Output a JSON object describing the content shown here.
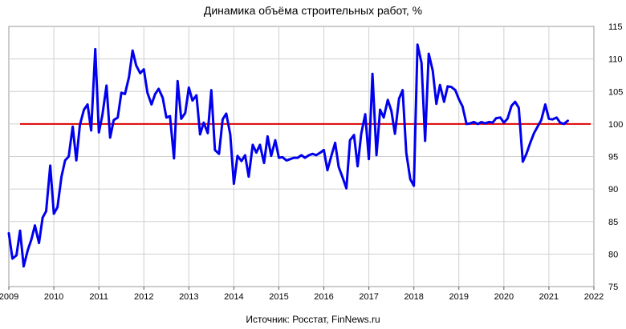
{
  "chart_data": {
    "type": "line",
    "title": "Динамика объёма строительных работ, %",
    "source": "Источник: Росстат, FinNews.ru",
    "xlabel": "",
    "ylabel": "",
    "xlim": [
      2009,
      2022
    ],
    "ylim": [
      75,
      115
    ],
    "x_ticks": [
      "2009",
      "2010",
      "2011",
      "2012",
      "2013",
      "2014",
      "2015",
      "2016",
      "2017",
      "2018",
      "2019",
      "2020",
      "2021",
      "2022"
    ],
    "y_ticks": [
      "75",
      "80",
      "85",
      "90",
      "95",
      "100",
      "105",
      "110",
      "115"
    ],
    "grid": true,
    "reference_line": {
      "value": 100,
      "color": "#e00000"
    },
    "series": [
      {
        "color": "#0000ee",
        "points": [
          [
            2009.0,
            83.2
          ],
          [
            2009.08,
            79.3
          ],
          [
            2009.17,
            79.8
          ],
          [
            2009.25,
            83.6
          ],
          [
            2009.33,
            78.1
          ],
          [
            2009.42,
            80.6
          ],
          [
            2009.5,
            82.2
          ],
          [
            2009.58,
            84.4
          ],
          [
            2009.67,
            81.7
          ],
          [
            2009.75,
            85.6
          ],
          [
            2009.83,
            86.6
          ],
          [
            2009.92,
            93.6
          ],
          [
            2010.0,
            86.2
          ],
          [
            2010.08,
            87.2
          ],
          [
            2010.17,
            91.9
          ],
          [
            2010.25,
            94.4
          ],
          [
            2010.33,
            95.0
          ],
          [
            2010.42,
            99.6
          ],
          [
            2010.5,
            94.4
          ],
          [
            2010.58,
            99.9
          ],
          [
            2010.67,
            102.2
          ],
          [
            2010.75,
            103.0
          ],
          [
            2010.83,
            99.0
          ],
          [
            2010.92,
            111.5
          ],
          [
            2011.0,
            98.7
          ],
          [
            2011.08,
            101.4
          ],
          [
            2011.17,
            105.9
          ],
          [
            2011.25,
            97.9
          ],
          [
            2011.33,
            100.6
          ],
          [
            2011.42,
            101.0
          ],
          [
            2011.5,
            104.8
          ],
          [
            2011.58,
            104.6
          ],
          [
            2011.67,
            107.2
          ],
          [
            2011.75,
            111.3
          ],
          [
            2011.83,
            109.0
          ],
          [
            2011.92,
            107.8
          ],
          [
            2012.0,
            108.4
          ],
          [
            2012.08,
            104.8
          ],
          [
            2012.17,
            103.0
          ],
          [
            2012.25,
            104.6
          ],
          [
            2012.33,
            105.4
          ],
          [
            2012.42,
            104.0
          ],
          [
            2012.5,
            101.0
          ],
          [
            2012.58,
            101.2
          ],
          [
            2012.67,
            94.7
          ],
          [
            2012.75,
            106.6
          ],
          [
            2012.83,
            100.8
          ],
          [
            2012.92,
            101.7
          ],
          [
            2013.0,
            105.6
          ],
          [
            2013.08,
            103.6
          ],
          [
            2013.17,
            104.4
          ],
          [
            2013.25,
            98.4
          ],
          [
            2013.33,
            100.2
          ],
          [
            2013.42,
            98.6
          ],
          [
            2013.5,
            105.2
          ],
          [
            2013.58,
            96.0
          ],
          [
            2013.67,
            95.4
          ],
          [
            2013.75,
            100.7
          ],
          [
            2013.83,
            101.6
          ],
          [
            2013.92,
            98.4
          ],
          [
            2014.0,
            90.8
          ],
          [
            2014.08,
            95.1
          ],
          [
            2014.17,
            94.3
          ],
          [
            2014.25,
            95.2
          ],
          [
            2014.33,
            91.9
          ],
          [
            2014.42,
            96.8
          ],
          [
            2014.5,
            95.6
          ],
          [
            2014.58,
            96.8
          ],
          [
            2014.67,
            94.0
          ],
          [
            2014.75,
            98.1
          ],
          [
            2014.83,
            95.1
          ],
          [
            2014.92,
            97.5
          ],
          [
            2015.0,
            94.8
          ],
          [
            2015.08,
            94.9
          ],
          [
            2015.17,
            94.4
          ],
          [
            2015.25,
            94.6
          ],
          [
            2015.33,
            94.8
          ],
          [
            2015.42,
            94.8
          ],
          [
            2015.5,
            95.2
          ],
          [
            2015.58,
            94.8
          ],
          [
            2015.67,
            95.2
          ],
          [
            2015.75,
            95.4
          ],
          [
            2015.83,
            95.2
          ],
          [
            2015.92,
            95.6
          ],
          [
            2016.0,
            96.0
          ],
          [
            2016.08,
            92.9
          ],
          [
            2016.17,
            95.2
          ],
          [
            2016.25,
            97.1
          ],
          [
            2016.33,
            93.4
          ],
          [
            2016.42,
            91.7
          ],
          [
            2016.5,
            90.1
          ],
          [
            2016.58,
            97.5
          ],
          [
            2016.67,
            98.3
          ],
          [
            2016.75,
            93.5
          ],
          [
            2016.83,
            98.5
          ],
          [
            2016.92,
            101.5
          ],
          [
            2017.0,
            94.6
          ],
          [
            2017.08,
            107.7
          ],
          [
            2017.17,
            95.2
          ],
          [
            2017.25,
            102.2
          ],
          [
            2017.33,
            101.0
          ],
          [
            2017.42,
            103.7
          ],
          [
            2017.5,
            102.0
          ],
          [
            2017.58,
            98.5
          ],
          [
            2017.67,
            103.9
          ],
          [
            2017.75,
            105.2
          ],
          [
            2017.83,
            95.6
          ],
          [
            2017.92,
            91.5
          ],
          [
            2018.0,
            90.5
          ],
          [
            2018.08,
            112.2
          ],
          [
            2018.17,
            109.4
          ],
          [
            2018.25,
            97.4
          ],
          [
            2018.33,
            110.8
          ],
          [
            2018.42,
            108.2
          ],
          [
            2018.5,
            103.1
          ],
          [
            2018.58,
            106.0
          ],
          [
            2018.67,
            103.4
          ],
          [
            2018.75,
            105.8
          ],
          [
            2018.83,
            105.7
          ],
          [
            2018.92,
            105.2
          ],
          [
            2019.0,
            103.8
          ],
          [
            2019.08,
            102.7
          ],
          [
            2019.17,
            100.0
          ],
          [
            2019.25,
            100.1
          ],
          [
            2019.33,
            100.3
          ],
          [
            2019.42,
            100.0
          ],
          [
            2019.5,
            100.3
          ],
          [
            2019.58,
            100.1
          ],
          [
            2019.67,
            100.3
          ],
          [
            2019.75,
            100.2
          ],
          [
            2019.83,
            100.9
          ],
          [
            2019.92,
            101.0
          ],
          [
            2020.0,
            100.2
          ],
          [
            2020.08,
            100.8
          ],
          [
            2020.17,
            102.8
          ],
          [
            2020.25,
            103.4
          ],
          [
            2020.33,
            102.5
          ],
          [
            2020.42,
            94.2
          ],
          [
            2020.5,
            95.4
          ],
          [
            2020.58,
            97.0
          ],
          [
            2020.67,
            98.6
          ],
          [
            2020.75,
            99.6
          ],
          [
            2020.83,
            100.6
          ],
          [
            2020.92,
            103.0
          ],
          [
            2021.0,
            100.8
          ],
          [
            2021.08,
            100.7
          ],
          [
            2021.17,
            101.0
          ],
          [
            2021.25,
            100.2
          ],
          [
            2021.33,
            100.0
          ],
          [
            2021.42,
            100.5
          ]
        ]
      }
    ]
  }
}
